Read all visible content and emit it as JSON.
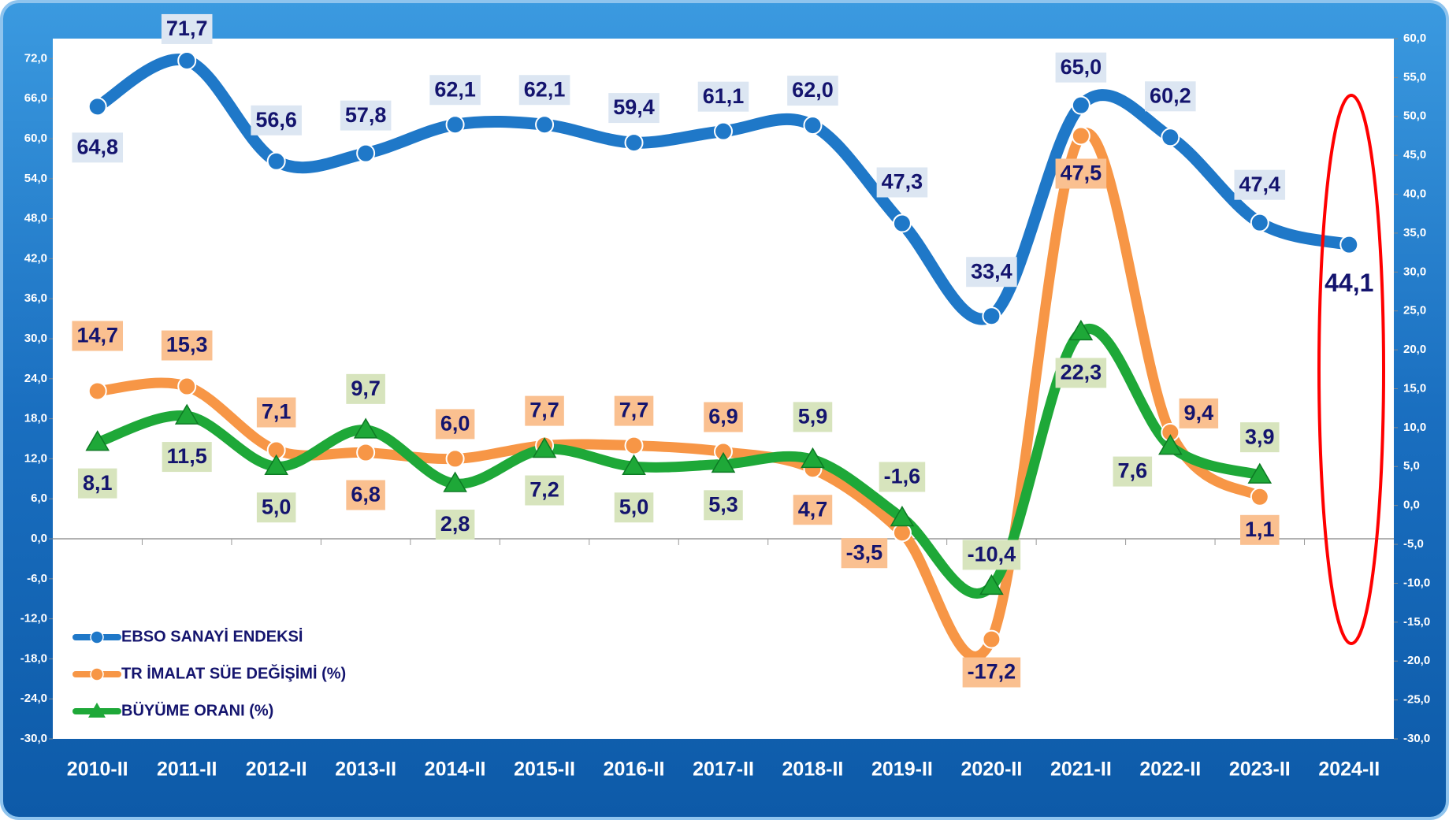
{
  "chart_data": {
    "type": "line",
    "categories": [
      "2010-II",
      "2011-II",
      "2012-II",
      "2013-II",
      "2014-II",
      "2015-II",
      "2016-II",
      "2017-II",
      "2018-II",
      "2019-II",
      "2020-II",
      "2021-II",
      "2022-II",
      "2023-II",
      "2024-II"
    ],
    "series": [
      {
        "name": "EBSO SANAYİ ENDEKSİ",
        "color": "#1f78c8",
        "marker": "circle",
        "axis": "y",
        "values": [
          64.8,
          71.7,
          56.6,
          57.8,
          62.1,
          62.1,
          59.4,
          61.1,
          62.0,
          47.3,
          33.4,
          65.0,
          60.2,
          47.4,
          44.1
        ],
        "value_labels": [
          "64,8",
          "71,7",
          "56,6",
          "57,8",
          "62,1",
          "62,1",
          "59,4",
          "61,1",
          "62,0",
          "47,3",
          "33,4",
          "65,0",
          "60,2",
          "47,4",
          "44,1"
        ],
        "label_color": "#dce6f2"
      },
      {
        "name": "TR İMALAT SÜE DEĞİŞİMİ (%)",
        "color": "#f79646",
        "marker": "circle",
        "axis": "y2",
        "values": [
          14.7,
          15.3,
          7.1,
          6.8,
          6.0,
          7.7,
          7.7,
          6.9,
          4.7,
          -3.5,
          -17.2,
          47.5,
          9.4,
          1.1,
          null
        ],
        "value_labels": [
          "14,7",
          "15,3",
          "7,1",
          "6,8",
          "6,0",
          "7,7",
          "7,7",
          "6,9",
          "4,7",
          "-3,5",
          "-17,2",
          "47,5",
          "9,4",
          "1,1",
          null
        ],
        "label_color": "#fac090"
      },
      {
        "name": "BÜYÜME ORANI (%)",
        "color": "#1ea838",
        "marker": "triangle",
        "axis": "y2",
        "values": [
          8.1,
          11.5,
          5.0,
          9.7,
          2.8,
          7.2,
          5.0,
          5.3,
          5.9,
          -1.6,
          -10.4,
          22.3,
          7.6,
          3.9,
          null
        ],
        "value_labels": [
          "8,1",
          "11,5",
          "5,0",
          "9,7",
          "2,8",
          "7,2",
          "5,0",
          "5,3",
          "5,9",
          "-1,6",
          "-10,4",
          "22,3",
          "7,6",
          "3,9",
          null
        ],
        "label_color": "#d7e4bd"
      }
    ],
    "ylim": [
      -30,
      75
    ],
    "yticks": [
      {
        "value": -30,
        "label": "-30,0"
      },
      {
        "value": -24,
        "label": "-24,0"
      },
      {
        "value": -18,
        "label": "-18,0"
      },
      {
        "value": -12,
        "label": "-12,0"
      },
      {
        "value": -6,
        "label": "-6,0"
      },
      {
        "value": 0,
        "label": "0,0"
      },
      {
        "value": 6,
        "label": "6,0"
      },
      {
        "value": 12,
        "label": "12,0"
      },
      {
        "value": 18,
        "label": "18,0"
      },
      {
        "value": 24,
        "label": "24,0"
      },
      {
        "value": 30,
        "label": "30,0"
      },
      {
        "value": 36,
        "label": "36,0"
      },
      {
        "value": 42,
        "label": "42,0"
      },
      {
        "value": 48,
        "label": "48,0"
      },
      {
        "value": 54,
        "label": "54,0"
      },
      {
        "value": 60,
        "label": "60,0"
      },
      {
        "value": 66,
        "label": "66,0"
      },
      {
        "value": 72,
        "label": "72,0"
      }
    ],
    "y2lim": [
      -30,
      60
    ],
    "y2ticks": [
      {
        "value": -30,
        "label": "-30,0"
      },
      {
        "value": -25,
        "label": "-25,0"
      },
      {
        "value": -20,
        "label": "-20,0"
      },
      {
        "value": -15,
        "label": "-15,0"
      },
      {
        "value": -10,
        "label": "-10,0"
      },
      {
        "value": -5,
        "label": "-5,0"
      },
      {
        "value": 0,
        "label": "0,0"
      },
      {
        "value": 5,
        "label": "5,0"
      },
      {
        "value": 10,
        "label": "10,0"
      },
      {
        "value": 15,
        "label": "15,0"
      },
      {
        "value": 20,
        "label": "20,0"
      },
      {
        "value": 25,
        "label": "25,0"
      },
      {
        "value": 30,
        "label": "30,0"
      },
      {
        "value": 35,
        "label": "35,0"
      },
      {
        "value": 40,
        "label": "40,0"
      },
      {
        "value": 45,
        "label": "45,0"
      },
      {
        "value": 50,
        "label": "50,0"
      },
      {
        "value": 55,
        "label": "55,0"
      },
      {
        "value": 60,
        "label": "60,0"
      }
    ],
    "grid": false,
    "legend": "lower left"
  }
}
